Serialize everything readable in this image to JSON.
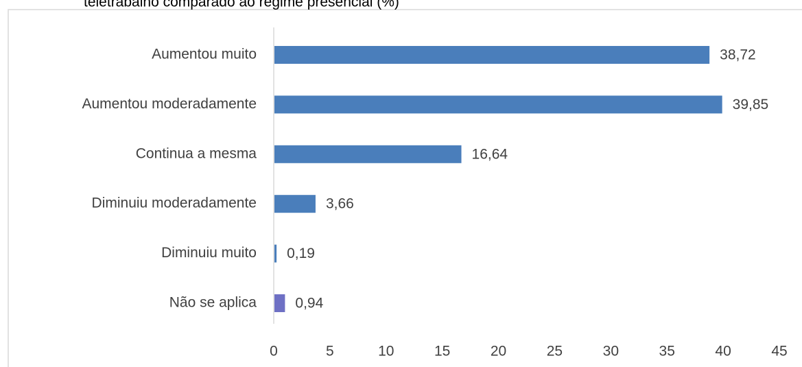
{
  "chart_data": {
    "type": "barh",
    "title": "teletrabalho comparado ao regime presencial (%)",
    "categories": [
      "Aumentou muito",
      "Aumentou moderadamente",
      "Continua a mesma",
      "Diminuiu moderadamente",
      "Diminuiu muito",
      "Não se aplica"
    ],
    "values": [
      38.72,
      39.85,
      16.64,
      3.66,
      0.19,
      0.94
    ],
    "value_labels": [
      "38,72",
      "39,85",
      "16,64",
      "3,66",
      "0,19",
      "0,94"
    ],
    "colors": [
      "#4a7ebb",
      "#4a7ebb",
      "#4a7ebb",
      "#4a7ebb",
      "#4a7ebb",
      "#6e70c4"
    ],
    "xlim": [
      0,
      45
    ],
    "xticks": [
      0,
      5,
      10,
      15,
      20,
      25,
      30,
      35,
      40,
      45
    ]
  }
}
